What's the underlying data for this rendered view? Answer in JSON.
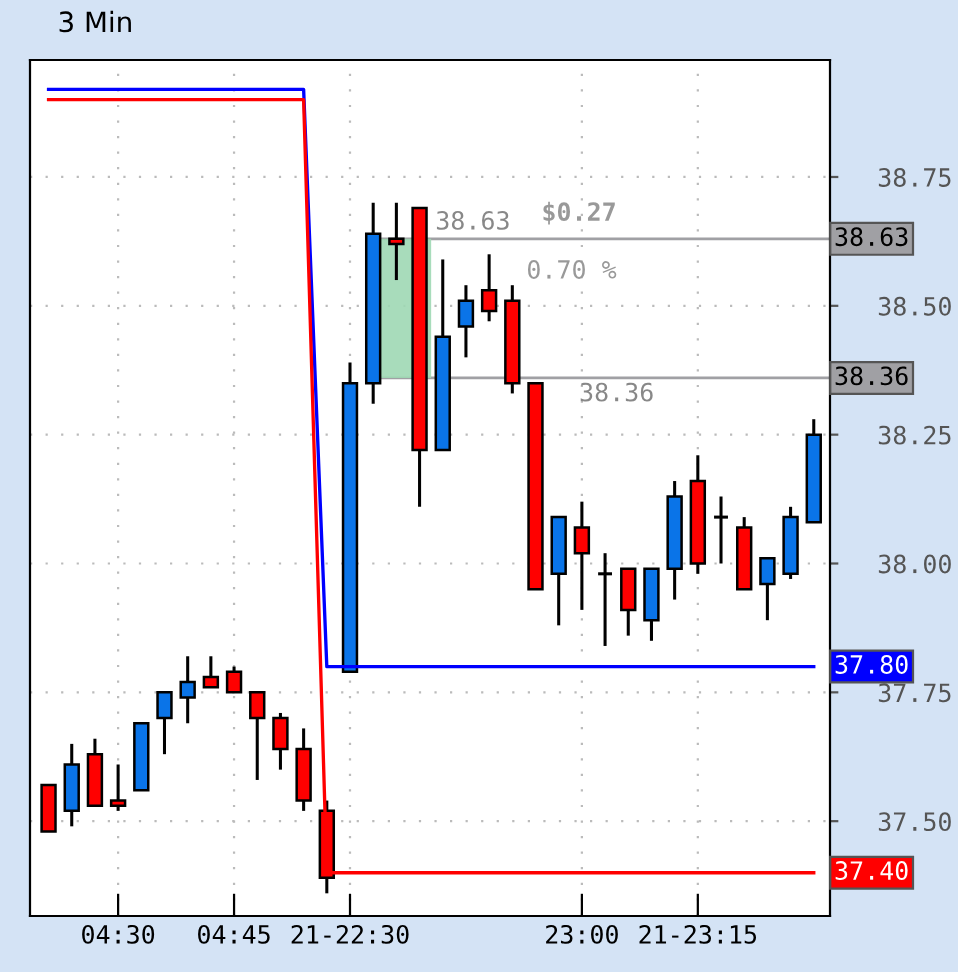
{
  "chart_data": {
    "type": "candlestick",
    "title": "3 Min",
    "categories": [
      null,
      null,
      null,
      "04:30",
      null,
      null,
      null,
      null,
      "04:45",
      null,
      null,
      null,
      null,
      "21-22:30",
      null,
      null,
      null,
      null,
      null,
      null,
      null,
      null,
      null,
      "23:00",
      null,
      null,
      null,
      null,
      "21-23:15",
      null,
      null,
      null,
      null,
      null
    ],
    "ohlc": [
      [
        37.57,
        37.57,
        37.48,
        37.48
      ],
      [
        37.52,
        37.65,
        37.49,
        37.61
      ],
      [
        37.63,
        37.66,
        37.53,
        37.53
      ],
      [
        37.54,
        37.61,
        37.52,
        37.53
      ],
      [
        37.56,
        37.69,
        37.56,
        37.69
      ],
      [
        37.7,
        37.75,
        37.63,
        37.75
      ],
      [
        37.74,
        37.82,
        37.69,
        37.77
      ],
      [
        37.78,
        37.82,
        37.76,
        37.76
      ],
      [
        37.79,
        37.8,
        37.75,
        37.75
      ],
      [
        37.75,
        37.75,
        37.58,
        37.7
      ],
      [
        37.7,
        37.71,
        37.6,
        37.64
      ],
      [
        37.64,
        37.68,
        37.52,
        37.54
      ],
      [
        37.52,
        37.54,
        37.36,
        37.39
      ],
      [
        37.79,
        38.39,
        37.79,
        38.35
      ],
      [
        38.35,
        38.7,
        38.31,
        38.64
      ],
      [
        38.63,
        38.7,
        38.55,
        38.62
      ],
      [
        38.69,
        38.69,
        38.11,
        38.22
      ],
      [
        38.22,
        38.59,
        38.22,
        38.44
      ],
      [
        38.46,
        38.54,
        38.4,
        38.51
      ],
      [
        38.53,
        38.6,
        38.47,
        38.49
      ],
      [
        38.51,
        38.54,
        38.33,
        38.35
      ],
      [
        38.35,
        38.35,
        37.95,
        37.95
      ],
      [
        37.98,
        38.09,
        37.88,
        38.09
      ],
      [
        38.07,
        38.12,
        37.91,
        38.02
      ],
      [
        37.98,
        38.02,
        37.84,
        37.98
      ],
      [
        37.99,
        37.99,
        37.86,
        37.91
      ],
      [
        37.89,
        37.99,
        37.85,
        37.99
      ],
      [
        37.99,
        38.16,
        37.93,
        38.13
      ],
      [
        38.16,
        38.21,
        37.98,
        38.0
      ],
      [
        38.09,
        38.13,
        38.0,
        38.09
      ],
      [
        38.07,
        38.09,
        37.95,
        37.95
      ],
      [
        37.96,
        38.01,
        37.89,
        38.01
      ],
      [
        37.98,
        38.11,
        37.97,
        38.09
      ],
      [
        38.08,
        38.28,
        38.08,
        38.25
      ]
    ],
    "colors": [
      "#ff0000",
      "#0a74e8",
      "#ff0000",
      "#ff0000",
      "#0a74e8",
      "#0a74e8",
      "#0a74e8",
      "#ff0000",
      "#ff0000",
      "#ff0000",
      "#ff0000",
      "#ff0000",
      "#ff0000",
      "#0a74e8",
      "#0a74e8",
      "#ff0000",
      "#ff0000",
      "#0a74e8",
      "#0a74e8",
      "#ff0000",
      "#ff0000",
      "#ff0000",
      "#0a74e8",
      "#ff0000",
      "#000000",
      "#ff0000",
      "#0a74e8",
      "#0a74e8",
      "#ff0000",
      "#000000",
      "#ff0000",
      "#0a74e8",
      "#0a74e8",
      "#0a74e8"
    ],
    "series": [
      {
        "type": "line",
        "color": "#0000ff",
        "values": [
          38.92,
          38.92,
          38.92,
          38.92,
          38.92,
          38.92,
          38.92,
          38.92,
          38.92,
          38.92,
          38.92,
          38.92,
          37.8,
          37.8,
          37.8,
          37.8,
          37.8,
          37.8,
          37.8,
          37.8,
          37.8,
          37.8,
          37.8,
          37.8,
          37.8,
          37.8,
          37.8,
          37.8,
          37.8,
          37.8,
          37.8,
          37.8,
          37.8,
          37.8
        ],
        "value_labels": [
          null,
          null,
          null,
          null,
          null,
          null,
          null,
          null,
          null,
          null,
          null,
          null,
          null,
          null,
          null,
          null,
          null,
          null,
          null,
          null,
          null,
          null,
          null,
          null,
          null,
          null,
          null,
          null,
          null,
          null,
          null,
          null,
          null,
          "37.80"
        ]
      },
      {
        "type": "line",
        "color": "#ff0000",
        "values": [
          38.9,
          38.9,
          38.9,
          38.9,
          38.9,
          38.9,
          38.9,
          38.9,
          38.9,
          38.9,
          38.9,
          38.9,
          37.4,
          37.4,
          37.4,
          37.4,
          37.4,
          37.4,
          37.4,
          37.4,
          37.4,
          37.4,
          37.4,
          37.4,
          37.4,
          37.4,
          37.4,
          37.4,
          37.4,
          37.4,
          37.4,
          37.4,
          37.4,
          37.4
        ],
        "value_labels": [
          null,
          null,
          null,
          null,
          null,
          null,
          null,
          null,
          null,
          null,
          null,
          null,
          null,
          null,
          null,
          null,
          null,
          null,
          null,
          null,
          null,
          null,
          null,
          null,
          null,
          null,
          null,
          null,
          null,
          null,
          null,
          null,
          null,
          "37.40"
        ]
      }
    ],
    "ylim": [
      37.316,
      38.977
    ],
    "yticks": [
      {
        "value": 37.5,
        "label": "37.50"
      },
      {
        "value": 37.75,
        "label": "37.75"
      },
      {
        "value": 38.0,
        "label": "38.00"
      },
      {
        "value": 38.25,
        "label": "38.25"
      },
      {
        "value": 38.5,
        "label": "38.50"
      },
      {
        "value": 38.75,
        "label": "38.75"
      }
    ],
    "ref_lines": [
      {
        "axis": "y",
        "value": 38.63,
        "label": "38.63",
        "color": "#a0a0a4"
      },
      {
        "axis": "y",
        "value": 38.36,
        "label": "38.36",
        "color": "#a0a0a4"
      }
    ],
    "annotations": [
      "$0.27",
      "0.70 %",
      {
        "text": "38.63",
        "y": 38.63
      },
      {
        "text": "38.36",
        "y": 38.36
      }
    ],
    "grid": true
  }
}
